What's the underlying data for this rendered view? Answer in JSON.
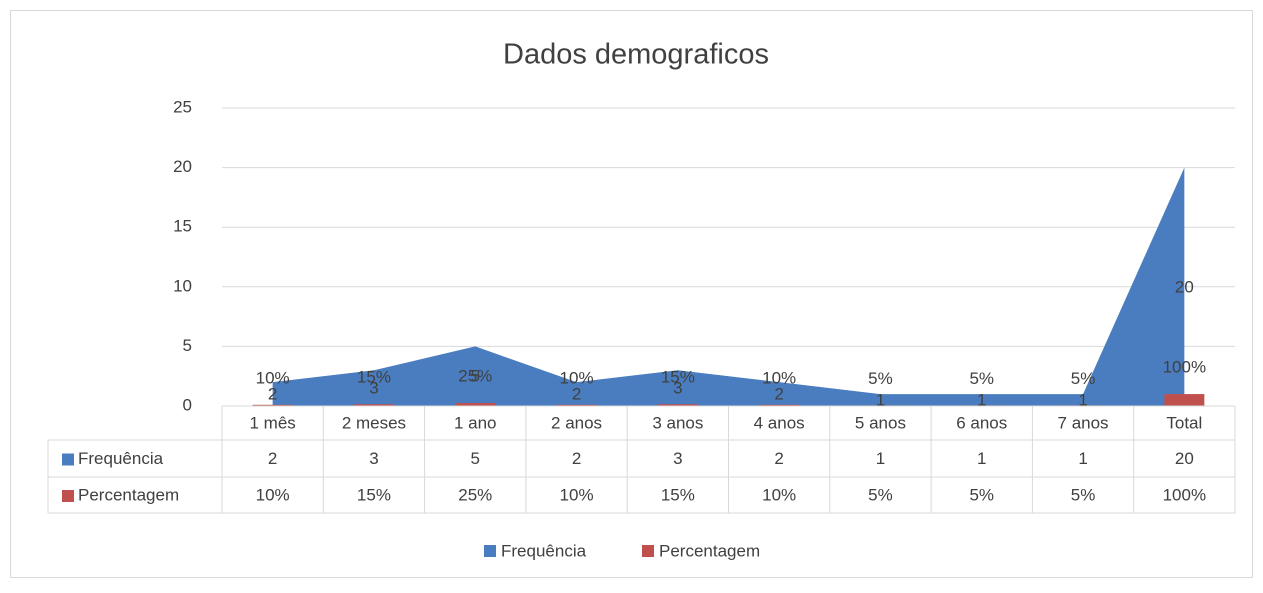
{
  "chart_data": {
    "type": "area-bar",
    "title": "Dados demograficos",
    "categories": [
      "1 mês",
      "2 meses",
      "1 ano",
      "2 anos",
      "3 anos",
      "4 anos",
      "5 anos",
      "6 anos",
      "7 anos",
      "Total"
    ],
    "series": [
      {
        "name": "Frequência",
        "type": "area",
        "color": "#4a7dbf",
        "values": [
          2,
          3,
          5,
          2,
          3,
          2,
          1,
          1,
          1,
          20
        ]
      },
      {
        "name": "Percentagem",
        "type": "bar",
        "color": "#c0504d",
        "values": [
          0.1,
          0.15,
          0.25,
          0.1,
          0.15,
          0.1,
          0.05,
          0.05,
          0.05,
          1
        ],
        "value_labels": [
          "10%",
          "15%",
          "25%",
          "10%",
          "15%",
          "10%",
          "5%",
          "5%",
          "5%",
          "100%"
        ]
      }
    ],
    "ylim": [
      0,
      25
    ],
    "yticks": [
      0,
      5,
      10,
      15,
      20,
      25
    ],
    "grid": true,
    "legend": "bottom",
    "data_table": true
  }
}
